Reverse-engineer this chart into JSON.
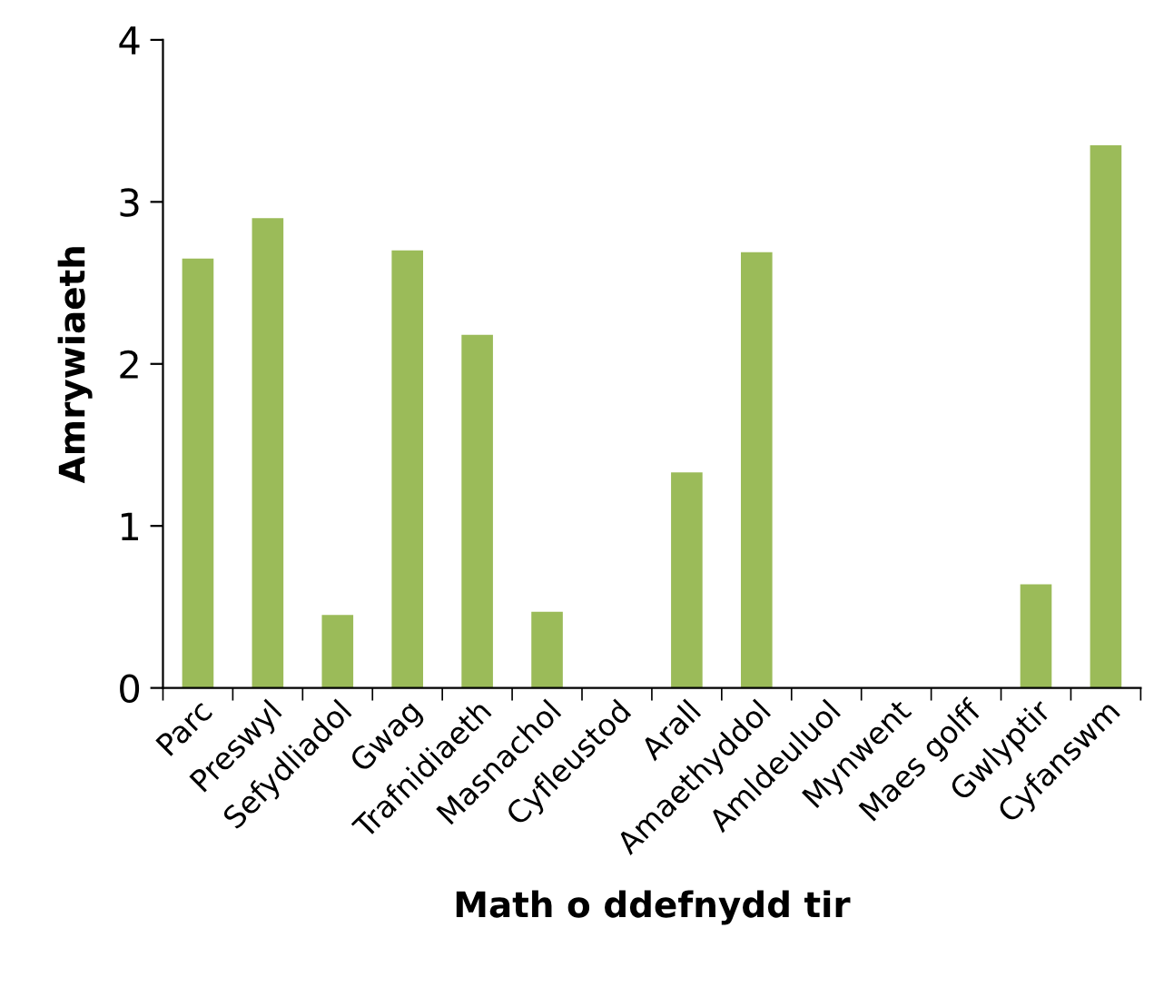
{
  "chart_data": {
    "type": "bar",
    "xlabel": "Math o ddefnydd tir",
    "ylabel": "Amrywiaeth",
    "categories": [
      "Parc",
      "Preswyl",
      "Sefydliadol",
      "Gwag",
      "Trafnidiaeth",
      "Masnachol",
      "Cyfleustod",
      "Arall",
      "Amaethyddol",
      "Amldeuluol",
      "Mynwent",
      "Maes golff",
      "Gwlyptir",
      "Cyfanswm"
    ],
    "values": [
      2.65,
      2.9,
      0.45,
      2.7,
      2.18,
      0.47,
      0,
      1.33,
      2.69,
      0,
      0,
      0,
      0.64,
      3.35
    ],
    "color": "#9bbb59",
    "ylim": [
      0,
      4
    ],
    "yticks": [
      0,
      1,
      2,
      3,
      4
    ],
    "grid": false,
    "legend": false
  }
}
